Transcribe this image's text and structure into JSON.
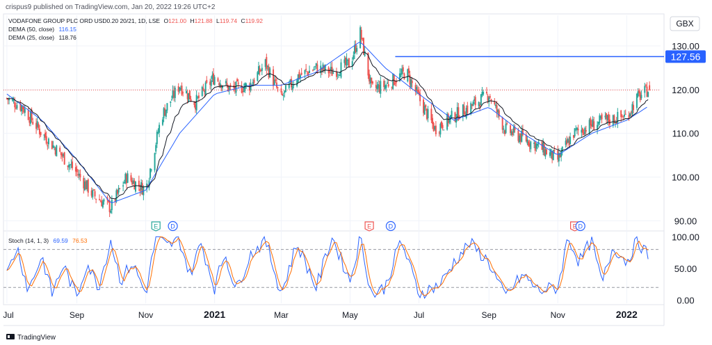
{
  "header": {
    "publisher_line": "crispus9 published on TradingView.com, Jan 20, 2022 19:26 UTC+2",
    "currency": "GBX",
    "symbol": "VODAFONE GROUP PLC ORD USD0.20 20/21, 1D, LSE",
    "ohlc": {
      "o_label": "O",
      "o": "121.00",
      "h_label": "H",
      "h": "121.88",
      "l_label": "L",
      "l": "119.74",
      "c_label": "C",
      "c": "119.92"
    },
    "dema50_label": "DEMA (50, close)",
    "dema50_value": "116.15",
    "dema25_label": "DEMA (25, close)",
    "dema25_value": "118.76"
  },
  "footer": {
    "brand": "TradingView"
  },
  "colors": {
    "up": "#26a69a",
    "down": "#ef5350",
    "dema50": "#2962ff",
    "dema25": "#131722",
    "stoch_k": "#2962ff",
    "stoch_d": "#ff6d00",
    "hline": "#2962ff",
    "badge_bg": "#2962ff"
  },
  "chart_data": [
    {
      "type": "candlestick",
      "title": "VODAFONE GROUP PLC ORD USD0.20 20/21, 1D, LSE",
      "y_axis_ticks": [
        "130.00",
        "120.00",
        "110.00",
        "100.00",
        "90.00"
      ],
      "ylim": [
        88,
        137
      ],
      "x_axis_ticks": [
        "Jul",
        "Sep",
        "Nov",
        "2021",
        "Mar",
        "May",
        "Jul",
        "Sep",
        "Nov",
        "2022"
      ],
      "horizontal_line": {
        "value": 127.56,
        "label": "127.56"
      },
      "last_close": 119.92,
      "close_path": [
        [
          "2020-07-01",
          118
        ],
        [
          "2020-07-15",
          116
        ],
        [
          "2020-08-01",
          110
        ],
        [
          "2020-08-15",
          106
        ],
        [
          "2020-09-01",
          101
        ],
        [
          "2020-09-15",
          96
        ],
        [
          "2020-10-01",
          93
        ],
        [
          "2020-10-15",
          100
        ],
        [
          "2020-11-01",
          97
        ],
        [
          "2020-11-15",
          114
        ],
        [
          "2020-12-01",
          121
        ],
        [
          "2020-12-15",
          117
        ],
        [
          "2021-01-01",
          123
        ],
        [
          "2021-01-15",
          120
        ],
        [
          "2021-02-01",
          121
        ],
        [
          "2021-02-15",
          126
        ],
        [
          "2021-03-01",
          118
        ],
        [
          "2021-03-15",
          123
        ],
        [
          "2021-04-01",
          125
        ],
        [
          "2021-04-15",
          124
        ],
        [
          "2021-05-01",
          126
        ],
        [
          "2021-05-10",
          133
        ],
        [
          "2021-05-20",
          120
        ],
        [
          "2021-06-01",
          121
        ],
        [
          "2021-06-20",
          124
        ],
        [
          "2021-07-01",
          118
        ],
        [
          "2021-07-15",
          111
        ],
        [
          "2021-08-01",
          114
        ],
        [
          "2021-08-15",
          116
        ],
        [
          "2021-09-01",
          119
        ],
        [
          "2021-09-15",
          111
        ],
        [
          "2021-10-01",
          109
        ],
        [
          "2021-10-15",
          107
        ],
        [
          "2021-11-01",
          104
        ],
        [
          "2021-11-15",
          110
        ],
        [
          "2021-12-01",
          112
        ],
        [
          "2021-12-15",
          113
        ],
        [
          "2022-01-01",
          114
        ],
        [
          "2022-01-10",
          118
        ],
        [
          "2022-01-20",
          120
        ]
      ],
      "dema50_path": [
        [
          "2020-07-01",
          119
        ],
        [
          "2020-08-01",
          113
        ],
        [
          "2020-09-01",
          104
        ],
        [
          "2020-10-01",
          94
        ],
        [
          "2020-11-01",
          97
        ],
        [
          "2020-12-01",
          110
        ],
        [
          "2021-01-01",
          119
        ],
        [
          "2021-02-01",
          121
        ],
        [
          "2021-03-01",
          121
        ],
        [
          "2021-04-01",
          124
        ],
        [
          "2021-05-10",
          131
        ],
        [
          "2021-06-01",
          125
        ],
        [
          "2021-07-01",
          119
        ],
        [
          "2021-08-01",
          113
        ],
        [
          "2021-09-01",
          116
        ],
        [
          "2021-10-01",
          110
        ],
        [
          "2021-11-01",
          105
        ],
        [
          "2021-12-01",
          110
        ],
        [
          "2022-01-01",
          113
        ],
        [
          "2022-01-20",
          116.15
        ]
      ],
      "events": [
        {
          "type": "E",
          "date": "2020-11-10"
        },
        {
          "type": "D",
          "date": "2020-11-25"
        },
        {
          "type": "E",
          "date": "2021-05-18"
        },
        {
          "type": "D",
          "date": "2021-06-06"
        },
        {
          "type": "E",
          "date": "2021-11-16"
        },
        {
          "type": "D",
          "date": "2021-11-21"
        }
      ]
    },
    {
      "type": "line",
      "title": "Stoch (14, 1, 3)",
      "k_value": "69.59",
      "d_value": "76.53",
      "y_axis_ticks": [
        "100.00",
        "50.00",
        "0.00"
      ],
      "ylim": [
        -5,
        107
      ],
      "bands": [
        80,
        20
      ],
      "k_path": [
        [
          "2020-07-01",
          40
        ],
        [
          "2020-07-10",
          85
        ],
        [
          "2020-07-20",
          15
        ],
        [
          "2020-08-01",
          70
        ],
        [
          "2020-08-10",
          10
        ],
        [
          "2020-08-20",
          55
        ],
        [
          "2020-09-01",
          5
        ],
        [
          "2020-09-10",
          60
        ],
        [
          "2020-09-20",
          20
        ],
        [
          "2020-10-01",
          95
        ],
        [
          "2020-10-10",
          30
        ],
        [
          "2020-10-20",
          60
        ],
        [
          "2020-11-01",
          10
        ],
        [
          "2020-11-10",
          100
        ],
        [
          "2020-11-20",
          85
        ],
        [
          "2020-12-01",
          95
        ],
        [
          "2020-12-10",
          40
        ],
        [
          "2020-12-20",
          90
        ],
        [
          "2021-01-01",
          20
        ],
        [
          "2021-01-10",
          75
        ],
        [
          "2021-01-20",
          15
        ],
        [
          "2021-02-01",
          70
        ],
        [
          "2021-02-15",
          95
        ],
        [
          "2021-03-01",
          10
        ],
        [
          "2021-03-15",
          90
        ],
        [
          "2021-04-01",
          20
        ],
        [
          "2021-04-15",
          100
        ],
        [
          "2021-05-01",
          30
        ],
        [
          "2021-05-10",
          100
        ],
        [
          "2021-05-20",
          8
        ],
        [
          "2021-06-01",
          20
        ],
        [
          "2021-06-15",
          95
        ],
        [
          "2021-07-01",
          10
        ],
        [
          "2021-07-20",
          25
        ],
        [
          "2021-08-01",
          60
        ],
        [
          "2021-08-15",
          90
        ],
        [
          "2021-09-01",
          60
        ],
        [
          "2021-09-15",
          5
        ],
        [
          "2021-10-01",
          40
        ],
        [
          "2021-10-15",
          15
        ],
        [
          "2021-11-01",
          20
        ],
        [
          "2021-11-10",
          100
        ],
        [
          "2021-11-20",
          60
        ],
        [
          "2021-12-01",
          95
        ],
        [
          "2021-12-10",
          25
        ],
        [
          "2021-12-20",
          85
        ],
        [
          "2022-01-01",
          60
        ],
        [
          "2022-01-10",
          95
        ],
        [
          "2022-01-20",
          70
        ]
      ]
    }
  ]
}
